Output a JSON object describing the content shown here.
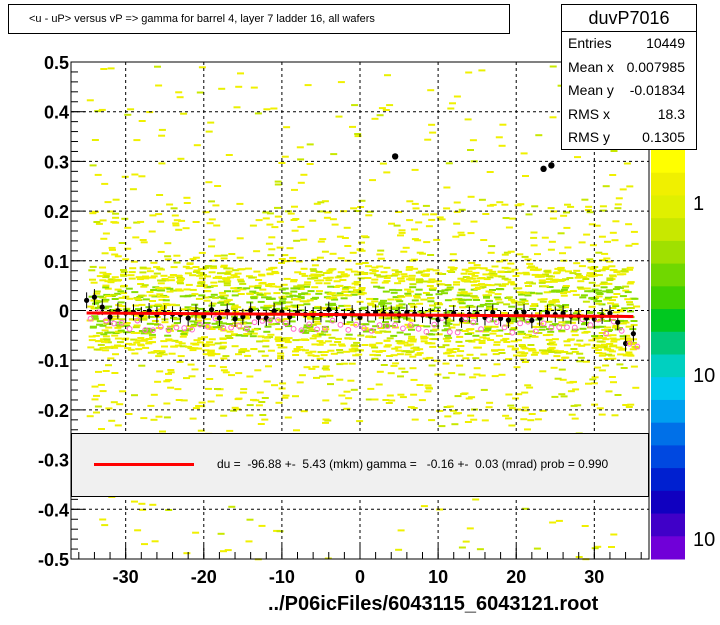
{
  "title": "<u - uP>       versus   vP =>  gamma for barrel 4, layer 7 ladder 16, all wafers",
  "stats": {
    "name": "duvP7016",
    "rows": [
      {
        "k": "Entries",
        "v": "10449"
      },
      {
        "k": "Mean x",
        "v": "0.007985"
      },
      {
        "k": "Mean y",
        "v": "-0.01834"
      },
      {
        "k": "RMS x",
        "v": "18.3"
      },
      {
        "k": "RMS y",
        "v": "0.1305"
      }
    ]
  },
  "legend_text": "du =  -96.88 +-  5.43 (mkm) gamma =   -0.16 +-  0.03 (mrad) prob = 0.990",
  "x_title": "../P06icFiles/6043115_6043121.root",
  "palette_labels": [
    "1",
    "10",
    "10"
  ],
  "chart_data": {
    "type": "heatmap",
    "xlim": [
      -37,
      37
    ],
    "ylim": [
      -0.5,
      0.5
    ],
    "x_ticks": [
      -30,
      -20,
      -10,
      0,
      10,
      20,
      30
    ],
    "x_tick_labels": [
      "-30",
      "-20",
      "-10",
      "0",
      "10",
      "20",
      "30"
    ],
    "y_ticks": [
      -0.5,
      -0.4,
      -0.3,
      -0.2,
      -0.1,
      0,
      0.1,
      0.2,
      0.3,
      0.4,
      0.5
    ],
    "y_tick_labels": [
      "-0.5",
      "-0.4",
      "-0.3",
      "-0.2",
      "-0.1",
      "0",
      "0.1",
      "0.2",
      "0.3",
      "0.4",
      "0.5"
    ],
    "grid": true,
    "fit_line": {
      "x": [
        -35,
        35
      ],
      "y": [
        -0.005,
        -0.012
      ]
    },
    "outliers": [
      {
        "x": 4.5,
        "y": 0.31
      },
      {
        "x": 23.5,
        "y": 0.285
      },
      {
        "x": 24.5,
        "y": 0.292
      }
    ],
    "profile_y_at_edges": {
      "x": [
        -35,
        -34,
        -33,
        33,
        34,
        35
      ],
      "y": [
        0.015,
        0.02,
        0.01,
        -0.03,
        -0.06,
        -0.04
      ]
    },
    "colors": {
      "bins_low": "#f0f000",
      "bins_mid": "#c8e800",
      "fit": "#ff0000",
      "mean_points": "#000000",
      "profile_points": "#ff66cc"
    }
  }
}
